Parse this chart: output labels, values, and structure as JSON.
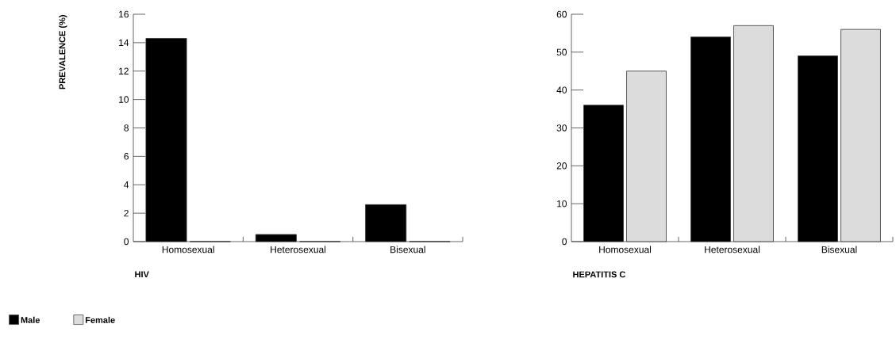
{
  "chart_data": [
    {
      "type": "bar",
      "title": "HIV",
      "ylabel": "PREVALENCE (%)",
      "categories": [
        "Homosexual",
        "Heterosexual",
        "Bisexual"
      ],
      "series": [
        {
          "name": "Male",
          "color": "#000000",
          "values": [
            14.3,
            0.5,
            2.6
          ]
        },
        {
          "name": "Female",
          "color": "#dcdcdc",
          "values": [
            0,
            0,
            0
          ]
        }
      ],
      "ylim": [
        0,
        16
      ],
      "yticks": [
        0,
        2,
        4,
        6,
        8,
        10,
        12,
        14,
        16
      ],
      "legend": "bottom"
    },
    {
      "type": "bar",
      "title": "HEPATITIS C",
      "categories": [
        "Homosexual",
        "Heterosexual",
        "Bisexual"
      ],
      "series": [
        {
          "color": "#000000",
          "values": [
            36,
            54,
            49
          ]
        },
        {
          "color": "#dcdcdc",
          "values": [
            45,
            57,
            56
          ]
        }
      ],
      "ylim": [
        0,
        60
      ],
      "yticks": [
        0,
        10,
        20,
        30,
        40,
        50,
        60
      ]
    }
  ]
}
